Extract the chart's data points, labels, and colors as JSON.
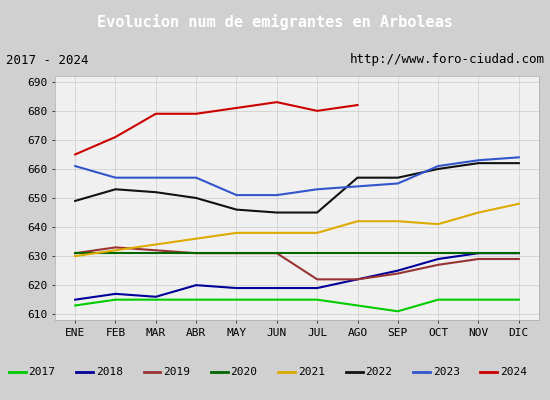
{
  "title": "Evolucion num de emigrantes en Arboleas",
  "subtitle_left": "2017 - 2024",
  "subtitle_right": "http://www.foro-ciudad.com",
  "months": [
    "ENE",
    "FEB",
    "MAR",
    "ABR",
    "MAY",
    "JUN",
    "JUL",
    "AGO",
    "SEP",
    "OCT",
    "NOV",
    "DIC"
  ],
  "ylim": [
    608,
    692
  ],
  "yticks": [
    610,
    620,
    630,
    640,
    650,
    660,
    670,
    680,
    690
  ],
  "series": {
    "2017": {
      "color": "#00cc00",
      "values": [
        613,
        615,
        615,
        615,
        615,
        615,
        615,
        613,
        611,
        615,
        615,
        615
      ]
    },
    "2018": {
      "color": "#000099",
      "values": [
        615,
        617,
        616,
        620,
        619,
        619,
        619,
        622,
        625,
        629,
        631,
        631
      ]
    },
    "2019": {
      "color": "#993333",
      "values": [
        631,
        633,
        632,
        631,
        631,
        631,
        622,
        622,
        624,
        627,
        629,
        629
      ]
    },
    "2020": {
      "color": "#006600",
      "values": [
        631,
        631,
        631,
        631,
        631,
        631,
        631,
        631,
        631,
        631,
        631,
        631
      ]
    },
    "2021": {
      "color": "#ddaa00",
      "values": [
        630,
        632,
        634,
        636,
        638,
        638,
        638,
        642,
        642,
        641,
        645,
        648
      ]
    },
    "2022": {
      "color": "#111111",
      "values": [
        649,
        653,
        652,
        650,
        646,
        645,
        645,
        657,
        657,
        660,
        662,
        662
      ]
    },
    "2023": {
      "color": "#3355cc",
      "values": [
        661,
        657,
        657,
        657,
        651,
        651,
        653,
        654,
        655,
        661,
        663,
        664
      ]
    },
    "2024": {
      "color": "#cc0000",
      "values": [
        665,
        671,
        679,
        679,
        681,
        683,
        680,
        682,
        null,
        null,
        null,
        null
      ]
    }
  },
  "title_bg": "#4a90d9",
  "title_color": "#ffffff",
  "subtitle_color": "#000000",
  "plot_bg": "#f0f0f0",
  "grid_color": "#cccccc",
  "title_fontsize": 11,
  "subtitle_fontsize": 9,
  "tick_fontsize": 8,
  "legend_fontsize": 8,
  "fig_bg": "#d0d0d0"
}
